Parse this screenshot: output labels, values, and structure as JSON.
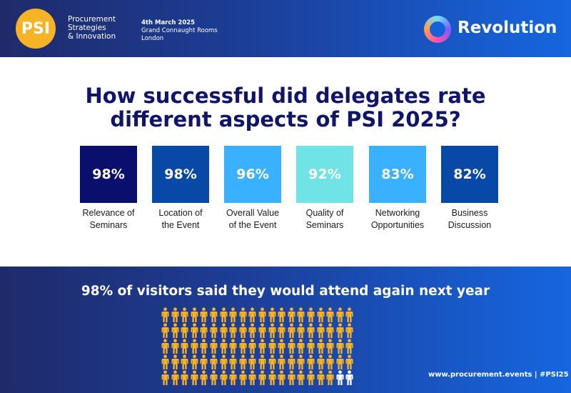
{
  "header": {
    "brand_short": "PSI",
    "brand_lines": [
      "Procurement",
      "Strategies",
      "& Innovation"
    ],
    "event_date": "4th March 2025",
    "venue": "Grand Connaught Rooms",
    "city": "London",
    "partner_name": "Revolution"
  },
  "title_lines": [
    "How successful did delegates rate",
    "different aspects of PSI 2025?"
  ],
  "stats": [
    {
      "value": "98%",
      "label_lines": [
        "Relevance of",
        "Seminars"
      ],
      "color": "#0a0f6e"
    },
    {
      "value": "98%",
      "label_lines": [
        "Location of",
        "the Event"
      ],
      "color": "#0848a6"
    },
    {
      "value": "96%",
      "label_lines": [
        "Overall Value",
        "of the Event"
      ],
      "color": "#3ab1ff"
    },
    {
      "value": "92%",
      "label_lines": [
        "Quality of",
        "Seminars"
      ],
      "color": "#6fe3e6"
    },
    {
      "value": "83%",
      "label_lines": [
        "Networking",
        "Opportunities"
      ],
      "color": "#3ab1ff"
    },
    {
      "value": "82%",
      "label_lines": [
        "Business",
        "Discussion"
      ],
      "color": "#0848a6"
    }
  ],
  "attendance": {
    "headline": "98% of visitors said they would attend again next year",
    "percent_yes": 98,
    "total": 100,
    "yes_color": "#f6b326",
    "no_color": "#ffffff"
  },
  "footer": "www.procurement.events | #PSI25"
}
